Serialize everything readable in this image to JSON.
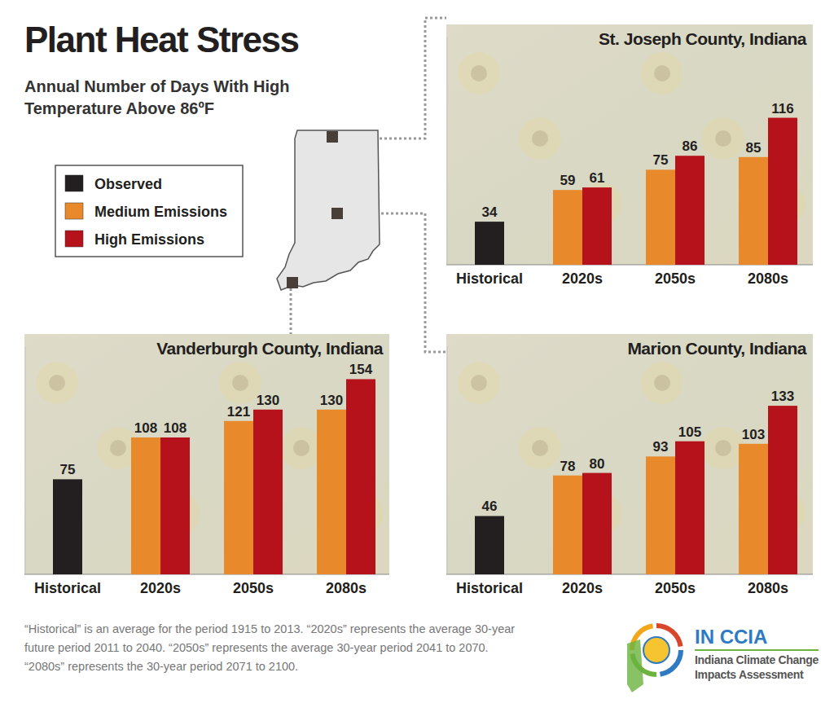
{
  "page": {
    "title": "Plant Heat Stress",
    "subtitle_lines": [
      "Annual Number of Days With High",
      "Temperature Above 86ºF"
    ],
    "footnote_lines": [
      "“Historical” is an average for the period 1915 to 2013. “2020s” represents the average 30-year",
      "future period 2011 to 2040. “2050s” represents the average 30-year period 2041 to 2070.",
      "“2080s” represents the 30-year period 2071 to 2100."
    ],
    "logo_title": "IN CCIA",
    "logo_lines": [
      "Indiana Climate Change",
      "Impacts Assessment"
    ]
  },
  "chart_data": [
    {
      "type": "bar",
      "title": "St. Joseph County, Indiana",
      "categories": [
        "Historical",
        "2020s",
        "2050s",
        "2080s"
      ],
      "series": [
        {
          "name": "Observed",
          "color": "#231f20",
          "values": [
            34,
            null,
            null,
            null
          ]
        },
        {
          "name": "Medium Emissions",
          "color": "#e8892b",
          "values": [
            null,
            59,
            75,
            85
          ]
        },
        {
          "name": "High Emissions",
          "color": "#b5121b",
          "values": [
            null,
            61,
            86,
            116
          ]
        }
      ],
      "ylim": [
        0,
        180
      ],
      "grid": false,
      "tick_labels": "x",
      "data_labels": true,
      "legend": "top-left"
    },
    {
      "type": "bar",
      "title": "Vanderburgh County, Indiana",
      "categories": [
        "Historical",
        "2020s",
        "2050s",
        "2080s"
      ],
      "series": [
        {
          "name": "Observed",
          "color": "#231f20",
          "values": [
            75,
            null,
            null,
            null
          ]
        },
        {
          "name": "Medium Emissions",
          "color": "#e8892b",
          "values": [
            null,
            108,
            121,
            130
          ]
        },
        {
          "name": "High Emissions",
          "color": "#b5121b",
          "values": [
            null,
            108,
            130,
            154
          ]
        }
      ],
      "ylim": [
        0,
        180
      ],
      "grid": false,
      "tick_labels": "x",
      "data_labels": true
    },
    {
      "type": "bar",
      "title": "Marion County, Indiana",
      "categories": [
        "Historical",
        "2020s",
        "2050s",
        "2080s"
      ],
      "series": [
        {
          "name": "Observed",
          "color": "#231f20",
          "values": [
            46,
            null,
            null,
            null
          ]
        },
        {
          "name": "Medium Emissions",
          "color": "#e8892b",
          "values": [
            null,
            78,
            93,
            103
          ]
        },
        {
          "name": "High Emissions",
          "color": "#b5121b",
          "values": [
            null,
            80,
            105,
            133
          ]
        }
      ],
      "ylim": [
        0,
        180
      ],
      "grid": false,
      "tick_labels": "x",
      "data_labels": true
    }
  ]
}
